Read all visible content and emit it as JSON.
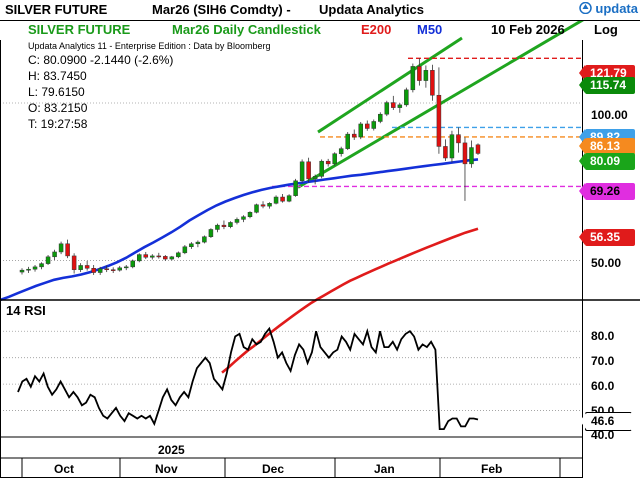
{
  "header": {
    "instrument": "SILVER FUTURE",
    "contract": "Mar26 (SIH6 Comdty)  -",
    "vendor": "Updata Analytics",
    "logo_text": "updata"
  },
  "subheader": {
    "title": "SILVER FUTURE",
    "chart_type": "Mar26 Daily Candlestick",
    "ma1": "E200",
    "ma2": "M50",
    "date": "10 Feb 2026",
    "scale": "Log"
  },
  "info_line": "Updata Analytics 11 - Enterprise Edition : Data by Bloomberg",
  "ohlc": {
    "close": "C: 80.0900  -2.1440 (-2.6%)",
    "high": "H: 83.7450",
    "low": "L: 79.6150",
    "open": "O: 83.2150",
    "time": "T: 19:27:58"
  },
  "rsi": {
    "title": "14 RSI"
  },
  "xaxis": {
    "year": "2025",
    "months": [
      "Oct",
      "Nov",
      "Dec",
      "Jan",
      "Feb"
    ]
  },
  "price_axis_labels": [
    "100.00",
    "50.00"
  ],
  "rsi_axis_labels": [
    "80.0",
    "70.0",
    "60.0",
    "50.0",
    "40.0"
  ],
  "price_tags": [
    {
      "text": "121.79",
      "color": "#e01b1b",
      "text_color": "#ffffff"
    },
    {
      "text": "115.74",
      "color": "#0a8a0a",
      "text_color": "#ffffff"
    },
    {
      "text": "89.82",
      "color": "#3ea0e8",
      "text_color": "#ffffff"
    },
    {
      "text": "86.13",
      "color": "#f58a1f",
      "text_color": "#ffffff"
    },
    {
      "text": "80.09",
      "color": "#1aa51a",
      "text_color": "#ffffff"
    },
    {
      "text": "69.26",
      "color": "#e02ee0",
      "text_color": "#000000"
    },
    {
      "text": "56.35",
      "color": "#e01b1b",
      "text_color": "#ffffff"
    },
    {
      "text": "46.6",
      "color": "#ffffff",
      "text_color": "#000000"
    }
  ],
  "colors": {
    "up": "#0a9a0a",
    "down": "#e01010",
    "channel": "#1fa51f",
    "m50": "#1430d8",
    "e200": "#e01b1b",
    "rsi": "#000000",
    "grid": "#9a9a9a"
  },
  "chart_data": [
    {
      "type": "candlestick",
      "title": "SILVER FUTURE Mar26 Daily Candlestick",
      "scale": "log",
      "ylim": [
        42,
        132
      ],
      "x_dates_range": [
        "2025-09-22",
        "2026-02-10"
      ],
      "candles": [
        {
          "o": 47.5,
          "h": 48.3,
          "l": 47.0,
          "c": 47.9
        },
        {
          "o": 47.9,
          "h": 48.6,
          "l": 47.3,
          "c": 48.1
        },
        {
          "o": 48.1,
          "h": 49.0,
          "l": 47.6,
          "c": 48.6
        },
        {
          "o": 48.6,
          "h": 49.6,
          "l": 48.1,
          "c": 49.3
        },
        {
          "o": 49.3,
          "h": 51.2,
          "l": 49.0,
          "c": 50.8
        },
        {
          "o": 50.8,
          "h": 52.4,
          "l": 50.1,
          "c": 51.9
        },
        {
          "o": 51.9,
          "h": 54.3,
          "l": 51.4,
          "c": 53.8
        },
        {
          "o": 53.8,
          "h": 54.8,
          "l": 50.5,
          "c": 51.0
        },
        {
          "o": 51.0,
          "h": 51.6,
          "l": 47.2,
          "c": 48.0
        },
        {
          "o": 48.0,
          "h": 49.4,
          "l": 47.5,
          "c": 48.9
        },
        {
          "o": 48.9,
          "h": 49.9,
          "l": 47.8,
          "c": 48.3
        },
        {
          "o": 48.3,
          "h": 49.0,
          "l": 46.9,
          "c": 47.4
        },
        {
          "o": 47.4,
          "h": 48.6,
          "l": 46.9,
          "c": 48.2
        },
        {
          "o": 48.2,
          "h": 48.9,
          "l": 47.5,
          "c": 48.0
        },
        {
          "o": 48.0,
          "h": 48.5,
          "l": 47.3,
          "c": 47.9
        },
        {
          "o": 47.9,
          "h": 48.8,
          "l": 47.6,
          "c": 48.4
        },
        {
          "o": 48.4,
          "h": 49.0,
          "l": 47.9,
          "c": 48.6
        },
        {
          "o": 48.6,
          "h": 50.2,
          "l": 48.3,
          "c": 49.9
        },
        {
          "o": 49.9,
          "h": 51.6,
          "l": 49.6,
          "c": 51.3
        },
        {
          "o": 51.3,
          "h": 51.9,
          "l": 50.3,
          "c": 50.7
        },
        {
          "o": 50.7,
          "h": 51.4,
          "l": 50.2,
          "c": 51.0
        },
        {
          "o": 51.0,
          "h": 51.7,
          "l": 50.4,
          "c": 50.9
        },
        {
          "o": 50.9,
          "h": 51.2,
          "l": 49.9,
          "c": 50.3
        },
        {
          "o": 50.3,
          "h": 51.0,
          "l": 50.0,
          "c": 50.8
        },
        {
          "o": 50.8,
          "h": 52.0,
          "l": 50.5,
          "c": 51.7
        },
        {
          "o": 51.7,
          "h": 53.5,
          "l": 51.4,
          "c": 53.1
        },
        {
          "o": 53.1,
          "h": 54.2,
          "l": 52.6,
          "c": 53.8
        },
        {
          "o": 53.8,
          "h": 54.6,
          "l": 53.0,
          "c": 54.2
        },
        {
          "o": 54.2,
          "h": 55.8,
          "l": 53.9,
          "c": 55.5
        },
        {
          "o": 55.5,
          "h": 57.6,
          "l": 55.2,
          "c": 57.3
        },
        {
          "o": 57.3,
          "h": 58.8,
          "l": 56.6,
          "c": 58.4
        },
        {
          "o": 58.4,
          "h": 59.6,
          "l": 57.4,
          "c": 58.0
        },
        {
          "o": 58.0,
          "h": 59.4,
          "l": 57.6,
          "c": 59.1
        },
        {
          "o": 59.1,
          "h": 60.4,
          "l": 58.6,
          "c": 59.9
        },
        {
          "o": 59.9,
          "h": 61.0,
          "l": 59.2,
          "c": 60.6
        },
        {
          "o": 60.6,
          "h": 62.1,
          "l": 60.2,
          "c": 61.8
        },
        {
          "o": 61.8,
          "h": 64.2,
          "l": 61.5,
          "c": 63.9
        },
        {
          "o": 63.9,
          "h": 64.9,
          "l": 62.9,
          "c": 63.5
        },
        {
          "o": 63.5,
          "h": 64.6,
          "l": 62.8,
          "c": 64.3
        },
        {
          "o": 64.3,
          "h": 66.6,
          "l": 64.0,
          "c": 66.1
        },
        {
          "o": 66.1,
          "h": 67.0,
          "l": 64.5,
          "c": 64.9
        },
        {
          "o": 64.9,
          "h": 66.9,
          "l": 64.6,
          "c": 66.5
        },
        {
          "o": 66.5,
          "h": 71.6,
          "l": 66.2,
          "c": 71.0
        },
        {
          "o": 71.0,
          "h": 78.0,
          "l": 70.4,
          "c": 77.2
        },
        {
          "o": 77.2,
          "h": 78.6,
          "l": 70.5,
          "c": 71.6
        },
        {
          "o": 71.6,
          "h": 73.0,
          "l": 69.9,
          "c": 72.4
        },
        {
          "o": 72.4,
          "h": 78.0,
          "l": 71.8,
          "c": 77.4
        },
        {
          "o": 77.4,
          "h": 78.2,
          "l": 75.6,
          "c": 76.5
        },
        {
          "o": 76.5,
          "h": 80.5,
          "l": 75.9,
          "c": 80.0
        },
        {
          "o": 80.0,
          "h": 82.5,
          "l": 79.0,
          "c": 81.8
        },
        {
          "o": 81.8,
          "h": 88.0,
          "l": 81.3,
          "c": 87.2
        },
        {
          "o": 87.2,
          "h": 89.0,
          "l": 85.0,
          "c": 86.1
        },
        {
          "o": 86.1,
          "h": 92.0,
          "l": 85.3,
          "c": 91.2
        },
        {
          "o": 91.2,
          "h": 92.6,
          "l": 88.5,
          "c": 89.4
        },
        {
          "o": 89.4,
          "h": 93.0,
          "l": 88.6,
          "c": 92.2
        },
        {
          "o": 92.2,
          "h": 96.0,
          "l": 91.5,
          "c": 95.2
        },
        {
          "o": 95.2,
          "h": 101.0,
          "l": 94.4,
          "c": 100.2
        },
        {
          "o": 100.2,
          "h": 103.2,
          "l": 97.0,
          "c": 98.0
        },
        {
          "o": 98.0,
          "h": 100.0,
          "l": 95.8,
          "c": 99.2
        },
        {
          "o": 99.2,
          "h": 107.0,
          "l": 98.4,
          "c": 106.0
        },
        {
          "o": 106.0,
          "h": 119.0,
          "l": 104.8,
          "c": 117.5
        },
        {
          "o": 117.5,
          "h": 121.8,
          "l": 108.0,
          "c": 110.4
        },
        {
          "o": 110.4,
          "h": 118.0,
          "l": 107.0,
          "c": 115.5
        },
        {
          "o": 115.5,
          "h": 118.4,
          "l": 101.0,
          "c": 103.5
        },
        {
          "o": 103.5,
          "h": 117.0,
          "l": 80.0,
          "c": 82.6
        },
        {
          "o": 82.6,
          "h": 85.2,
          "l": 77.5,
          "c": 78.5
        },
        {
          "o": 78.5,
          "h": 88.5,
          "l": 77.0,
          "c": 87.0
        },
        {
          "o": 87.0,
          "h": 89.8,
          "l": 80.4,
          "c": 83.9
        },
        {
          "o": 83.9,
          "h": 86.0,
          "l": 65.0,
          "c": 76.5
        },
        {
          "o": 76.5,
          "h": 84.8,
          "l": 75.2,
          "c": 82.2
        },
        {
          "o": 83.2,
          "h": 83.7,
          "l": 79.6,
          "c": 80.09
        }
      ],
      "indicators": [
        {
          "name": "M50",
          "values": [
            42.0,
            42.6,
            43.3,
            44.0,
            44.7,
            45.3,
            45.9,
            46.3,
            46.6,
            47.0,
            47.5,
            48.1,
            48.8,
            49.6,
            50.6,
            51.8,
            53.0,
            54.1,
            55.3,
            56.6,
            58.0,
            59.6,
            61.0,
            62.4,
            63.7,
            64.8,
            65.8,
            66.7,
            67.5,
            68.2,
            68.8,
            69.3,
            69.8,
            70.2,
            70.6,
            71.0,
            71.4,
            71.8,
            72.2,
            72.6,
            72.9,
            73.3,
            73.7,
            74.1,
            74.5,
            74.9,
            75.3,
            75.7,
            76.1,
            76.5,
            76.9,
            77.3,
            77.7,
            78.0
          ]
        },
        {
          "name": "E200",
          "values": [
            30.5,
            31.2,
            32.0,
            32.8,
            33.6,
            34.3,
            35.1,
            35.9,
            36.7,
            37.5,
            38.3,
            39.1,
            39.9,
            40.7,
            41.5,
            42.2,
            42.9,
            43.6,
            44.3,
            45.0,
            45.7,
            46.3,
            46.9,
            47.5,
            48.1,
            48.7,
            49.3,
            49.9,
            50.5,
            51.1,
            51.7,
            52.3,
            52.9,
            53.5,
            54.1,
            54.7,
            55.3,
            55.9,
            56.5,
            57.0,
            57.5
          ]
        }
      ],
      "channel": {
        "lower_from": 69.0,
        "lower_to": 115.74,
        "upper_from": 88.0,
        "upper_to": 121.79
      },
      "levels": [
        121.79,
        89.82,
        86.13,
        69.26
      ]
    },
    {
      "type": "line",
      "title": "14 RSI",
      "ylim": [
        40,
        85
      ],
      "series": [
        {
          "name": "14 RSI",
          "values": [
            57,
            61,
            62,
            59,
            63,
            61,
            64,
            59,
            56,
            58,
            61,
            58,
            55,
            57,
            55,
            52,
            53,
            56,
            55,
            51,
            48,
            47,
            49,
            51,
            48,
            46,
            49,
            48,
            47,
            48,
            47,
            48,
            45,
            50,
            55,
            58,
            54,
            52,
            55,
            57,
            55,
            61,
            66,
            68,
            70,
            68,
            62,
            60,
            58,
            64,
            72,
            78,
            79,
            74,
            73,
            77,
            75,
            76,
            79,
            81,
            76,
            70,
            72,
            68,
            65,
            71,
            75,
            73,
            68,
            72,
            80,
            74,
            72,
            70,
            72,
            73,
            78,
            76,
            73,
            79,
            77,
            75,
            80,
            74,
            72,
            80,
            74,
            74,
            76,
            73,
            77,
            79,
            80,
            78,
            73,
            75,
            74,
            76,
            73,
            43,
            43,
            46,
            47,
            47,
            44,
            44,
            47,
            47,
            46.6
          ]
        }
      ]
    }
  ]
}
